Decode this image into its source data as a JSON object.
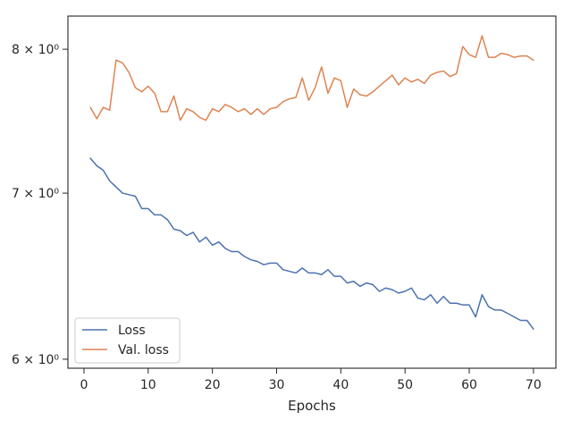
{
  "chart_data": {
    "type": "line",
    "title": "",
    "xlabel": "Epochs",
    "ylabel": "",
    "y_scale": "log",
    "xlim": [
      -2.5,
      73.5
    ],
    "ylim": [
      5.95,
      8.25
    ],
    "grid": false,
    "legend_position": "lower-left",
    "x_ticks": [
      0,
      10,
      20,
      30,
      40,
      50,
      60,
      70
    ],
    "x_tick_labels": [
      "0",
      "10",
      "20",
      "30",
      "40",
      "50",
      "60",
      "70"
    ],
    "y_ticks": [
      6,
      7,
      8
    ],
    "y_tick_labels": [
      "6 × 10⁰",
      "7 × 10⁰",
      "8 × 10⁰"
    ],
    "x": [
      1,
      2,
      3,
      4,
      5,
      6,
      7,
      8,
      9,
      10,
      11,
      12,
      13,
      14,
      15,
      16,
      17,
      18,
      19,
      20,
      21,
      22,
      23,
      24,
      25,
      26,
      27,
      28,
      29,
      30,
      31,
      32,
      33,
      34,
      35,
      36,
      37,
      38,
      39,
      40,
      41,
      42,
      43,
      44,
      45,
      46,
      47,
      48,
      49,
      50,
      51,
      52,
      53,
      54,
      55,
      56,
      57,
      58,
      59,
      60,
      61,
      62,
      63,
      64,
      65,
      66,
      67,
      68,
      69,
      70
    ],
    "series": [
      {
        "name": "Loss",
        "color": "#4c72b0",
        "values": [
          7.23,
          7.18,
          7.15,
          7.08,
          7.04,
          7.0,
          6.99,
          6.98,
          6.9,
          6.9,
          6.86,
          6.86,
          6.83,
          6.77,
          6.76,
          6.73,
          6.75,
          6.69,
          6.72,
          6.67,
          6.69,
          6.65,
          6.63,
          6.63,
          6.6,
          6.58,
          6.57,
          6.55,
          6.56,
          6.56,
          6.52,
          6.51,
          6.5,
          6.53,
          6.5,
          6.5,
          6.49,
          6.52,
          6.48,
          6.48,
          6.44,
          6.45,
          6.42,
          6.44,
          6.43,
          6.39,
          6.41,
          6.4,
          6.38,
          6.39,
          6.41,
          6.35,
          6.34,
          6.37,
          6.32,
          6.36,
          6.32,
          6.32,
          6.31,
          6.31,
          6.24,
          6.37,
          6.3,
          6.28,
          6.28,
          6.26,
          6.24,
          6.22,
          6.22,
          6.17
        ]
      },
      {
        "name": "Val. loss",
        "color": "#dd8452",
        "values": [
          7.58,
          7.5,
          7.58,
          7.56,
          7.92,
          7.9,
          7.83,
          7.72,
          7.69,
          7.73,
          7.68,
          7.55,
          7.55,
          7.66,
          7.49,
          7.57,
          7.55,
          7.51,
          7.49,
          7.57,
          7.55,
          7.6,
          7.58,
          7.55,
          7.57,
          7.53,
          7.57,
          7.53,
          7.57,
          7.58,
          7.62,
          7.64,
          7.65,
          7.79,
          7.63,
          7.72,
          7.87,
          7.68,
          7.79,
          7.77,
          7.58,
          7.71,
          7.67,
          7.66,
          7.69,
          7.73,
          7.77,
          7.81,
          7.74,
          7.79,
          7.76,
          7.78,
          7.75,
          7.81,
          7.83,
          7.84,
          7.8,
          7.82,
          8.02,
          7.96,
          7.94,
          8.1,
          7.94,
          7.94,
          7.97,
          7.96,
          7.94,
          7.95,
          7.95,
          7.92
        ]
      }
    ]
  }
}
